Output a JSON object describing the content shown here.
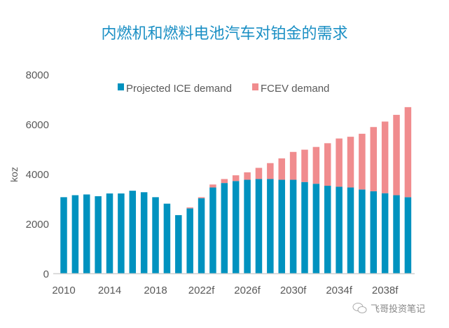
{
  "chart_data": {
    "type": "bar",
    "stacked": true,
    "title": "内燃机和燃料电池汽车对铂金的需求",
    "xlabel": "",
    "ylabel": "koz",
    "ylim": [
      0,
      8000
    ],
    "yticks": [
      0,
      2000,
      4000,
      6000,
      8000
    ],
    "grid": false,
    "legend_position": "top",
    "categories": [
      "2010",
      "2011",
      "2012",
      "2013",
      "2014",
      "2015",
      "2016",
      "2017",
      "2018",
      "2019",
      "2020",
      "2021",
      "2022f",
      "2023f",
      "2024f",
      "2025f",
      "2026f",
      "2027f",
      "2028f",
      "2029f",
      "2030f",
      "2031f",
      "2032f",
      "2033f",
      "2034f",
      "2035f",
      "2036f",
      "2037f",
      "2038f",
      "2039f",
      "2040f"
    ],
    "xtick_labels": [
      "2010",
      "2014",
      "2018",
      "2022f",
      "2026f",
      "2030f",
      "2034f",
      "2038f"
    ],
    "series": [
      {
        "name": "Projected ICE demand",
        "color": "#0092bf",
        "values": [
          3060,
          3140,
          3170,
          3100,
          3210,
          3210,
          3320,
          3260,
          3060,
          2800,
          2340,
          2610,
          3020,
          3450,
          3630,
          3710,
          3760,
          3790,
          3790,
          3760,
          3760,
          3670,
          3600,
          3520,
          3480,
          3450,
          3370,
          3300,
          3220,
          3140,
          3060
        ]
      },
      {
        "name": "FCEV demand",
        "color": "#f08c8e",
        "values": [
          0,
          0,
          0,
          0,
          0,
          0,
          0,
          0,
          0,
          0,
          0,
          40,
          40,
          120,
          160,
          230,
          300,
          450,
          640,
          860,
          1120,
          1300,
          1480,
          1710,
          1940,
          2040,
          2240,
          2580,
          2880,
          3230,
          3620
        ]
      }
    ]
  },
  "watermark": {
    "text": "飞哥投资笔记",
    "icon": "wechat-icon"
  }
}
